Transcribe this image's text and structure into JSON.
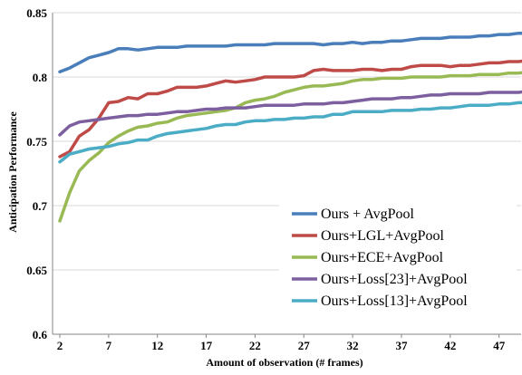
{
  "chart_data": {
    "type": "line",
    "xlabel": "Amount of observation (# frames)",
    "ylabel": "Anticipation Performance",
    "xlim": [
      2,
      50
    ],
    "ylim": [
      0.6,
      0.85
    ],
    "xticks": [
      "2",
      "7",
      "12",
      "17",
      "22",
      "27",
      "32",
      "37",
      "42",
      "47"
    ],
    "yticks": [
      "0.6",
      "0.65",
      "0.7",
      "0.75",
      "0.8",
      "0.85"
    ],
    "grid": "horizontal",
    "legend_position": "bottom-right",
    "x": [
      2,
      3,
      4,
      5,
      6,
      7,
      8,
      9,
      10,
      11,
      12,
      13,
      14,
      15,
      16,
      17,
      18,
      19,
      20,
      21,
      22,
      23,
      24,
      25,
      26,
      27,
      28,
      29,
      30,
      31,
      32,
      33,
      34,
      35,
      36,
      37,
      38,
      39,
      40,
      41,
      42,
      43,
      44,
      45,
      46,
      47,
      48,
      49,
      50
    ],
    "series": [
      {
        "name": "Ours + AvgPool",
        "color": "#4a7ebb",
        "values": [
          0.804,
          0.807,
          0.811,
          0.815,
          0.817,
          0.819,
          0.822,
          0.822,
          0.821,
          0.822,
          0.823,
          0.823,
          0.823,
          0.824,
          0.824,
          0.824,
          0.824,
          0.824,
          0.825,
          0.825,
          0.825,
          0.825,
          0.826,
          0.826,
          0.826,
          0.826,
          0.826,
          0.825,
          0.826,
          0.826,
          0.827,
          0.826,
          0.827,
          0.827,
          0.828,
          0.828,
          0.829,
          0.83,
          0.83,
          0.83,
          0.831,
          0.831,
          0.831,
          0.832,
          0.832,
          0.833,
          0.833,
          0.834,
          0.834
        ]
      },
      {
        "name": "Ours+LGL+AvgPool",
        "color": "#be4b48",
        "values": [
          0.738,
          0.742,
          0.754,
          0.759,
          0.768,
          0.78,
          0.781,
          0.784,
          0.783,
          0.787,
          0.787,
          0.789,
          0.792,
          0.792,
          0.792,
          0.793,
          0.795,
          0.797,
          0.796,
          0.797,
          0.798,
          0.8,
          0.8,
          0.8,
          0.8,
          0.801,
          0.805,
          0.806,
          0.805,
          0.805,
          0.805,
          0.806,
          0.806,
          0.805,
          0.806,
          0.806,
          0.808,
          0.809,
          0.809,
          0.809,
          0.808,
          0.809,
          0.809,
          0.81,
          0.811,
          0.811,
          0.812,
          0.812,
          0.813
        ]
      },
      {
        "name": "Ours+ECE+AvgPool",
        "color": "#98b954",
        "values": [
          0.688,
          0.71,
          0.727,
          0.735,
          0.741,
          0.749,
          0.754,
          0.758,
          0.761,
          0.762,
          0.764,
          0.765,
          0.768,
          0.77,
          0.771,
          0.772,
          0.773,
          0.774,
          0.776,
          0.78,
          0.782,
          0.783,
          0.785,
          0.788,
          0.79,
          0.792,
          0.793,
          0.793,
          0.794,
          0.795,
          0.797,
          0.798,
          0.798,
          0.799,
          0.799,
          0.799,
          0.8,
          0.8,
          0.8,
          0.8,
          0.801,
          0.801,
          0.801,
          0.802,
          0.802,
          0.802,
          0.803,
          0.803,
          0.804
        ]
      },
      {
        "name": "Ours+Loss[23]+AvgPool",
        "color": "#7d5fa0",
        "values": [
          0.755,
          0.762,
          0.765,
          0.766,
          0.767,
          0.768,
          0.769,
          0.77,
          0.77,
          0.771,
          0.771,
          0.772,
          0.773,
          0.773,
          0.774,
          0.775,
          0.775,
          0.776,
          0.776,
          0.776,
          0.777,
          0.778,
          0.778,
          0.778,
          0.778,
          0.779,
          0.779,
          0.779,
          0.78,
          0.78,
          0.781,
          0.782,
          0.783,
          0.783,
          0.783,
          0.784,
          0.784,
          0.785,
          0.786,
          0.786,
          0.787,
          0.787,
          0.787,
          0.787,
          0.788,
          0.788,
          0.788,
          0.788,
          0.789
        ]
      },
      {
        "name": "Ours+Loss[13]+AvgPool",
        "color": "#4bacc6",
        "values": [
          0.734,
          0.74,
          0.742,
          0.744,
          0.745,
          0.746,
          0.748,
          0.749,
          0.751,
          0.751,
          0.754,
          0.756,
          0.757,
          0.758,
          0.759,
          0.76,
          0.762,
          0.763,
          0.763,
          0.765,
          0.766,
          0.766,
          0.767,
          0.767,
          0.768,
          0.768,
          0.769,
          0.769,
          0.771,
          0.771,
          0.773,
          0.773,
          0.773,
          0.773,
          0.774,
          0.774,
          0.774,
          0.775,
          0.775,
          0.776,
          0.776,
          0.777,
          0.778,
          0.778,
          0.778,
          0.779,
          0.779,
          0.78,
          0.78
        ]
      }
    ]
  }
}
